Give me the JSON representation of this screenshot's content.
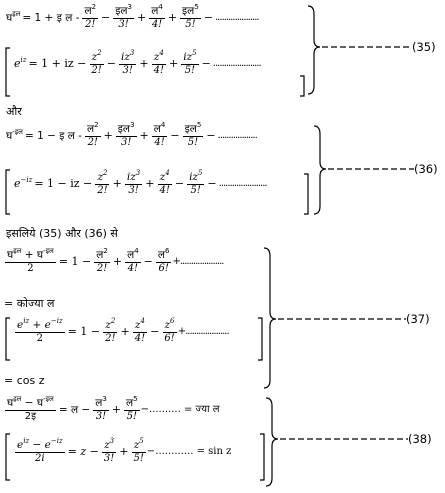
{
  "eq35": {
    "number": "(35)",
    "hindi": {
      "lhs": "घ",
      "lhs_sup": "इल",
      "eq": "= 1 + इ ल -",
      "t1n": "ल",
      "t1p": "2",
      "t1d": "2!",
      "t2n": "इल",
      "t2p": "3",
      "t2d": "3!",
      "t3n": "ल",
      "t3p": "4",
      "t3d": "4!",
      "t4n": "इल",
      "t4p": "5",
      "t4d": "5!",
      "dots": "...................."
    },
    "latin": {
      "lhs": "e",
      "lhs_sup": "iz",
      "eq": "= 1 + iz −",
      "t1n": "z",
      "t1p": "2",
      "t1d": "2!",
      "t2n": "iz",
      "t2p": "3",
      "t2d": "3!",
      "t3n": "z",
      "t3p": "4",
      "t3d": "4!",
      "t4n": "iz",
      "t4p": "5",
      "t4d": "5!",
      "dots": "......................"
    }
  },
  "connector_and": "और",
  "eq36": {
    "number": "(36)",
    "hindi": {
      "lhs": "घ",
      "lhs_sup": "-इल",
      "eq": "= 1 − इ ल -",
      "t1n": "ल",
      "t1p": "2",
      "t1d": "2!",
      "t2n": "इल",
      "t2p": "3",
      "t2d": "3!",
      "t3n": "ल",
      "t3p": "4",
      "t3d": "4!",
      "t4n": "इल",
      "t4p": "5",
      "t4d": "5!",
      "dots": ".................."
    },
    "latin": {
      "lhs": "e",
      "lhs_sup": "−iz",
      "eq": "= 1 − iz −",
      "t1n": "z",
      "t1p": "2",
      "t1d": "2!",
      "t2n": "iz",
      "t2p": "3",
      "t2d": "3!",
      "t3n": "z",
      "t3p": "4",
      "t3d": "4!",
      "t4n": "iz",
      "t4p": "5",
      "t4d": "5!",
      "dots": "......................"
    }
  },
  "connector_hence": "इसलिये (35) और (36) से",
  "eq37": {
    "number": "(37)",
    "hindi_num_a": "घ",
    "hindi_num_a_sup": "इल",
    "hindi_num_b": "+ घ",
    "hindi_num_b_sup": "-इल",
    "hindi_den": "2",
    "hindi_eq": "= 1 −",
    "h1n": "ल",
    "h1p": "2",
    "h1d": "2!",
    "h2n": "ल",
    "h2p": "4",
    "h2d": "4!",
    "h3n": "ल",
    "h3p": "6",
    "h3d": "6!",
    "hindi_dots": "+....................",
    "hindi_result": "= कोज्या ल",
    "latin_num": "e",
    "latin_num_sup": "iz",
    "latin_num_b": "+ e",
    "latin_num_b_sup": "−iz",
    "latin_den": "2",
    "latin_eq": "= 1 −",
    "l1n": "z",
    "l1p": "2",
    "l1d": "2!",
    "l2n": "z",
    "l2p": "4",
    "l2d": "4!",
    "l3n": "z",
    "l3p": "6",
    "l3d": "6!",
    "latin_dots": "+....................",
    "latin_result": "= cos z"
  },
  "eq38": {
    "number": "(38)",
    "hindi_num_a": "घ",
    "hindi_num_a_sup": "इल",
    "hindi_num_b": "− घ",
    "hindi_num_b_sup": "-इल",
    "hindi_den": "2इ",
    "hindi_eq": "= ल −",
    "h1n": "ल",
    "h1p": "3",
    "h1d": "3!",
    "h2n": "ल",
    "h2p": "5",
    "h2d": "5!",
    "hindi_dots": "−.......... = ज्या ल",
    "latin_num": "e",
    "latin_num_sup": "iz",
    "latin_num_b": "− e",
    "latin_num_b_sup": "−iz",
    "latin_den": "2i",
    "latin_eq": "= z −",
    "l1n": "z",
    "l1p": "3",
    "l1d": "3!",
    "l2n": "z",
    "l2p": "5",
    "l2d": "5!",
    "latin_dots": "−............ = sin z"
  }
}
